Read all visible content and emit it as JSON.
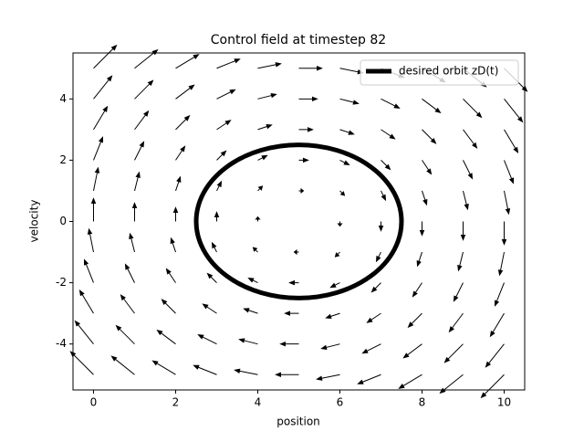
{
  "chart_data": {
    "type": "quiver",
    "title": "Control field at timestep 82",
    "xlabel": "position",
    "ylabel": "velocity",
    "x": [
      0,
      1,
      2,
      3,
      4,
      5,
      6,
      7,
      8,
      9,
      10
    ],
    "y": [
      -5,
      -4,
      -3,
      -2,
      -1,
      0,
      1,
      2,
      3,
      4,
      5
    ],
    "u": [
      [
        -5,
        -5,
        -5,
        -5,
        -5,
        -5,
        -5,
        -5,
        -5,
        -5,
        -5
      ],
      [
        -4,
        -4,
        -4,
        -4,
        -4,
        -4,
        -4,
        -4,
        -4,
        -4,
        -4
      ],
      [
        -3,
        -3,
        -3,
        -3,
        -3,
        -3,
        -3,
        -3,
        -3,
        -3,
        -3
      ],
      [
        -2,
        -2,
        -2,
        -2,
        -2,
        -2,
        -2,
        -2,
        -2,
        -2,
        -2
      ],
      [
        -1,
        -1,
        -1,
        -1,
        -1,
        -1,
        -1,
        -1,
        -1,
        -1,
        -1
      ],
      [
        0,
        0,
        0,
        0,
        0,
        0,
        0,
        0,
        0,
        0,
        0
      ],
      [
        1,
        1,
        1,
        1,
        1,
        1,
        1,
        1,
        1,
        1,
        1
      ],
      [
        2,
        2,
        2,
        2,
        2,
        2,
        2,
        2,
        2,
        2,
        2
      ],
      [
        3,
        3,
        3,
        3,
        3,
        3,
        3,
        3,
        3,
        3,
        3
      ],
      [
        4,
        4,
        4,
        4,
        4,
        4,
        4,
        4,
        4,
        4,
        4
      ],
      [
        5,
        5,
        5,
        5,
        5,
        5,
        5,
        5,
        5,
        5,
        5
      ]
    ],
    "v": [
      [
        5,
        4,
        3,
        2,
        1,
        0,
        -1,
        -2,
        -3,
        -4,
        -5
      ],
      [
        5,
        4,
        3,
        2,
        1,
        0,
        -1,
        -2,
        -3,
        -4,
        -5
      ],
      [
        5,
        4,
        3,
        2,
        1,
        0,
        -1,
        -2,
        -3,
        -4,
        -5
      ],
      [
        5,
        4,
        3,
        2,
        1,
        0,
        -1,
        -2,
        -3,
        -4,
        -5
      ],
      [
        5,
        4,
        3,
        2,
        1,
        0,
        -1,
        -2,
        -3,
        -4,
        -5
      ],
      [
        5,
        4,
        3,
        2,
        1,
        0,
        -1,
        -2,
        -3,
        -4,
        -5
      ],
      [
        5,
        4,
        3,
        2,
        1,
        0,
        -1,
        -2,
        -3,
        -4,
        -5
      ],
      [
        5,
        4,
        3,
        2,
        1,
        0,
        -1,
        -2,
        -3,
        -4,
        -5
      ],
      [
        5,
        4,
        3,
        2,
        1,
        0,
        -1,
        -2,
        -3,
        -4,
        -5
      ],
      [
        5,
        4,
        3,
        2,
        1,
        0,
        -1,
        -2,
        -3,
        -4,
        -5
      ],
      [
        5,
        4,
        3,
        2,
        1,
        0,
        -1,
        -2,
        -3,
        -4,
        -5
      ]
    ],
    "color": "#000000",
    "orbit": {
      "name": "desired orbit zD(t)",
      "center": [
        5,
        0
      ],
      "radius": 2.5,
      "color": "#000000"
    },
    "xlim": [
      -0.5,
      10.5
    ],
    "xticks": [
      0,
      2,
      4,
      6,
      8,
      10
    ],
    "ylim": [
      -5.5,
      5.5
    ],
    "yticks": [
      -4,
      -2,
      0,
      2,
      4
    ],
    "legend": "upper right"
  }
}
